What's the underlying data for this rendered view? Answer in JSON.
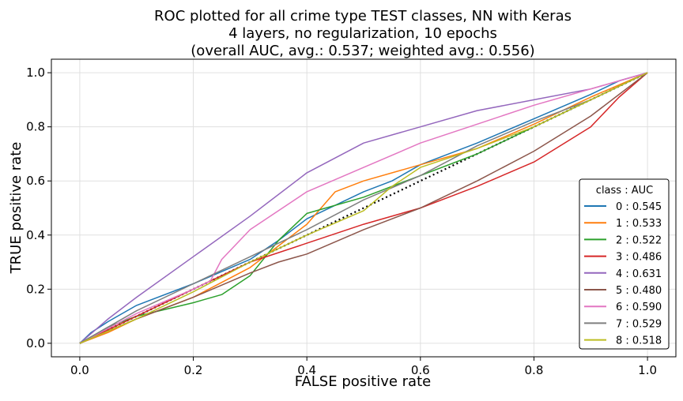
{
  "chart_data": {
    "type": "line",
    "title": [
      "ROC plotted for all crime type TEST classes, NN with Keras",
      "4 layers, no regularization, 10 epochs",
      "(overall AUC, avg.: 0.537; weighted avg.: 0.556)"
    ],
    "xlabel": "FALSE positive rate",
    "ylabel": "TRUE positive rate",
    "xlim": [
      -0.05,
      1.05
    ],
    "ylim": [
      -0.05,
      1.05
    ],
    "xticks": [
      "0.0",
      "0.2",
      "0.4",
      "0.6",
      "0.8",
      "1.0"
    ],
    "yticks": [
      "0.0",
      "0.2",
      "0.4",
      "0.6",
      "0.8",
      "1.0"
    ],
    "grid": true,
    "legend": {
      "title": "class : AUC",
      "position": "lower-right"
    },
    "diagonal": {
      "style": "dotted",
      "color": "#000000",
      "x": [
        0,
        1
      ],
      "y": [
        0,
        1
      ]
    },
    "series": [
      {
        "name": "0 : 0.545",
        "color": "#1f77b4",
        "x": [
          0,
          0.02,
          0.05,
          0.1,
          0.2,
          0.3,
          0.35,
          0.4,
          0.5,
          0.55,
          0.6,
          0.7,
          0.8,
          0.9,
          0.95,
          1.0
        ],
        "y": [
          0,
          0.04,
          0.08,
          0.14,
          0.22,
          0.31,
          0.38,
          0.46,
          0.56,
          0.6,
          0.66,
          0.74,
          0.83,
          0.92,
          0.97,
          1.0
        ]
      },
      {
        "name": "1 : 0.533",
        "color": "#ff7f0e",
        "x": [
          0,
          0.05,
          0.1,
          0.2,
          0.3,
          0.4,
          0.45,
          0.5,
          0.6,
          0.7,
          0.8,
          0.9,
          1.0
        ],
        "y": [
          0,
          0.04,
          0.09,
          0.17,
          0.28,
          0.44,
          0.56,
          0.6,
          0.66,
          0.72,
          0.81,
          0.91,
          1.0
        ]
      },
      {
        "name": "2 : 0.522",
        "color": "#2ca02c",
        "x": [
          0,
          0.05,
          0.1,
          0.2,
          0.25,
          0.3,
          0.35,
          0.4,
          0.5,
          0.6,
          0.7,
          0.8,
          0.9,
          1.0
        ],
        "y": [
          0,
          0.06,
          0.1,
          0.15,
          0.18,
          0.25,
          0.38,
          0.48,
          0.54,
          0.62,
          0.7,
          0.8,
          0.9,
          1.0
        ]
      },
      {
        "name": "3 : 0.486",
        "color": "#d62728",
        "x": [
          0,
          0.1,
          0.2,
          0.3,
          0.4,
          0.5,
          0.6,
          0.7,
          0.8,
          0.9,
          0.95,
          1.0
        ],
        "y": [
          0,
          0.1,
          0.2,
          0.3,
          0.37,
          0.44,
          0.5,
          0.58,
          0.67,
          0.8,
          0.91,
          1.0
        ]
      },
      {
        "name": "4 : 0.631",
        "color": "#9467bd",
        "x": [
          0,
          0.05,
          0.1,
          0.2,
          0.3,
          0.4,
          0.5,
          0.6,
          0.7,
          0.8,
          0.9,
          1.0
        ],
        "y": [
          0,
          0.09,
          0.17,
          0.32,
          0.47,
          0.63,
          0.74,
          0.8,
          0.86,
          0.9,
          0.94,
          1.0
        ]
      },
      {
        "name": "5 : 0.480",
        "color": "#8c564b",
        "x": [
          0,
          0.1,
          0.2,
          0.3,
          0.35,
          0.4,
          0.5,
          0.6,
          0.7,
          0.8,
          0.9,
          1.0
        ],
        "y": [
          0,
          0.09,
          0.17,
          0.26,
          0.3,
          0.33,
          0.42,
          0.5,
          0.6,
          0.71,
          0.84,
          1.0
        ]
      },
      {
        "name": "6 : 0.590",
        "color": "#e377c2",
        "x": [
          0,
          0.1,
          0.2,
          0.23,
          0.25,
          0.3,
          0.4,
          0.5,
          0.6,
          0.7,
          0.8,
          0.9,
          1.0
        ],
        "y": [
          0,
          0.11,
          0.2,
          0.23,
          0.31,
          0.42,
          0.56,
          0.65,
          0.74,
          0.81,
          0.88,
          0.94,
          1.0
        ]
      },
      {
        "name": "7 : 0.529",
        "color": "#7f7f7f",
        "x": [
          0,
          0.05,
          0.1,
          0.2,
          0.3,
          0.4,
          0.5,
          0.6,
          0.7,
          0.8,
          0.9,
          1.0
        ],
        "y": [
          0,
          0.06,
          0.12,
          0.22,
          0.32,
          0.42,
          0.53,
          0.62,
          0.73,
          0.82,
          0.9,
          1.0
        ]
      },
      {
        "name": "8 : 0.518",
        "color": "#bcbd22",
        "x": [
          0,
          0.1,
          0.2,
          0.3,
          0.4,
          0.5,
          0.55,
          0.6,
          0.7,
          0.8,
          0.9,
          1.0
        ],
        "y": [
          0,
          0.09,
          0.19,
          0.3,
          0.4,
          0.49,
          0.58,
          0.65,
          0.72,
          0.8,
          0.9,
          1.0
        ]
      }
    ]
  }
}
